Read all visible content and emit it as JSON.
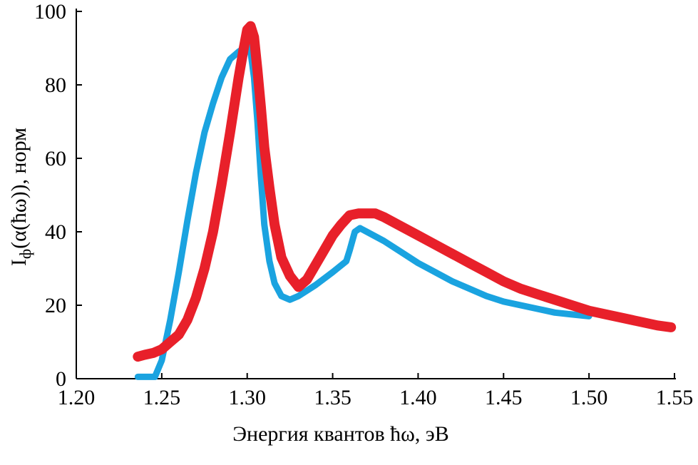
{
  "chart_data": {
    "type": "line",
    "xlabel": "Энергия квантов ħω, эВ",
    "ylabel_main": "I",
    "ylabel_sub": "ф",
    "ylabel_rest": "(α(ħω)), норм",
    "xlim": [
      1.2,
      1.55
    ],
    "ylim": [
      0,
      100
    ],
    "xticks": [
      "1.20",
      "1.25",
      "1.30",
      "1.35",
      "1.40",
      "1.45",
      "1.50",
      "1.55"
    ],
    "yticks": [
      "0",
      "20",
      "40",
      "60",
      "80",
      "100"
    ],
    "grid": false,
    "legend": "none",
    "series": [
      {
        "color": "#1aa3e0",
        "x": [
          1.236,
          1.246,
          1.25,
          1.255,
          1.26,
          1.265,
          1.27,
          1.275,
          1.28,
          1.285,
          1.29,
          1.295,
          1.298,
          1.3,
          1.302,
          1.304,
          1.306,
          1.308,
          1.31,
          1.313,
          1.316,
          1.32,
          1.325,
          1.33,
          1.34,
          1.35,
          1.358,
          1.36,
          1.363,
          1.366,
          1.37,
          1.38,
          1.39,
          1.4,
          1.41,
          1.42,
          1.43,
          1.44,
          1.45,
          1.46,
          1.47,
          1.48,
          1.49,
          1.5
        ],
        "y": [
          0.5,
          0.5,
          5,
          16,
          29,
          43,
          56,
          67,
          75,
          82,
          87,
          89,
          90,
          91,
          89,
          82,
          70,
          55,
          42,
          32,
          26,
          22.5,
          21.5,
          22.5,
          25.5,
          29,
          32,
          35,
          40,
          41,
          40,
          37.5,
          34.5,
          31.5,
          29,
          26.5,
          24.5,
          22.5,
          21,
          20,
          19,
          18,
          17.5,
          17
        ]
      },
      {
        "color": "#e8202a",
        "x": [
          1.236,
          1.24,
          1.245,
          1.25,
          1.255,
          1.26,
          1.265,
          1.27,
          1.275,
          1.28,
          1.285,
          1.29,
          1.295,
          1.298,
          1.3,
          1.302,
          1.304,
          1.306,
          1.308,
          1.31,
          1.313,
          1.316,
          1.32,
          1.325,
          1.33,
          1.335,
          1.34,
          1.345,
          1.35,
          1.355,
          1.36,
          1.365,
          1.37,
          1.375,
          1.38,
          1.39,
          1.4,
          1.41,
          1.42,
          1.43,
          1.44,
          1.45,
          1.46,
          1.47,
          1.48,
          1.49,
          1.5,
          1.51,
          1.52,
          1.53,
          1.54,
          1.548
        ],
        "y": [
          6,
          6.5,
          7,
          8,
          10,
          12,
          16,
          22,
          30,
          40,
          53,
          67,
          82,
          90,
          95,
          96,
          93,
          84,
          74,
          63,
          52,
          42,
          33,
          28,
          25,
          27,
          31,
          35,
          39,
          42,
          44.5,
          45,
          45,
          45,
          44,
          41.5,
          39,
          36.5,
          34,
          31.5,
          29,
          26.5,
          24.5,
          23,
          21.5,
          20,
          18.5,
          17.5,
          16.5,
          15.5,
          14.5,
          14
        ]
      }
    ]
  }
}
